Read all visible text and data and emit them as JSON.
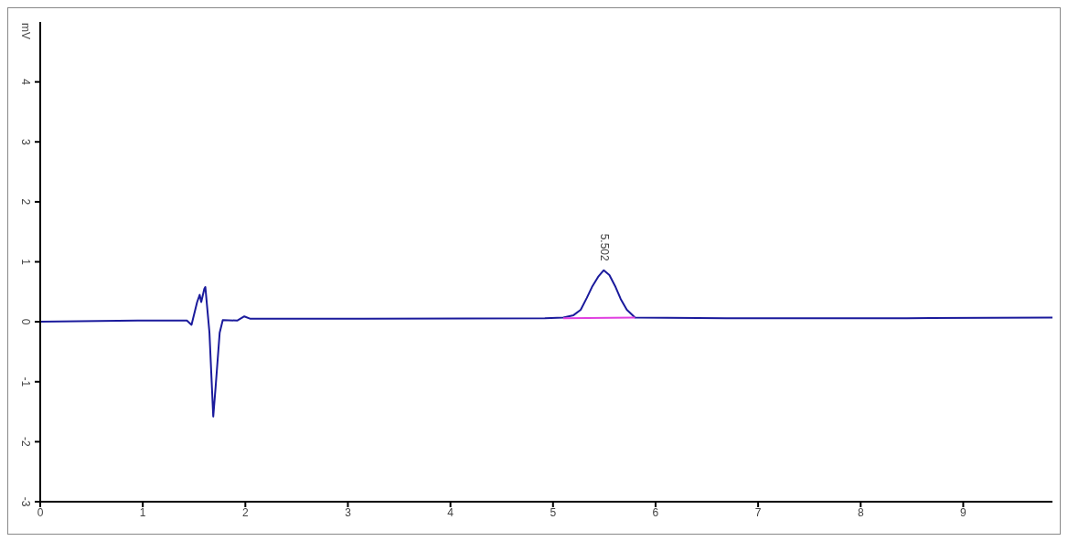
{
  "chart_data": {
    "type": "line",
    "ylabel": "mV",
    "xlim": [
      0,
      9.87
    ],
    "xticks": [
      0,
      1,
      2,
      3,
      4,
      5,
      6,
      7,
      8,
      9
    ],
    "ylim": [
      -3,
      5
    ],
    "yticks": [
      -3,
      -2,
      -1,
      0,
      1,
      2,
      3,
      4
    ],
    "marker": "none",
    "line_style": "solid",
    "series": [
      {
        "color": "#1a1a9c",
        "x": [
          0,
          0.95,
          1.43,
          1.475,
          1.53,
          1.555,
          1.57,
          1.6,
          1.61,
          1.65,
          1.687,
          1.71,
          1.75,
          1.78,
          1.92,
          1.99,
          2.05,
          3.15,
          4.92,
          5.1,
          5.2,
          5.27,
          5.33,
          5.38,
          5.44,
          5.495,
          5.55,
          5.61,
          5.66,
          5.72,
          5.8,
          6.69,
          8.45,
          9.87
        ],
        "values": [
          0,
          0.02,
          0.02,
          -0.05,
          0.33,
          0.45,
          0.33,
          0.55,
          0.58,
          -0.18,
          -1.58,
          -1.09,
          -0.18,
          0.03,
          0.02,
          0.09,
          0.05,
          0.05,
          0.06,
          0.07,
          0.11,
          0.2,
          0.4,
          0.58,
          0.75,
          0.86,
          0.78,
          0.58,
          0.38,
          0.2,
          0.07,
          0.06,
          0.06,
          0.07
        ]
      },
      {
        "color": "#e040e0",
        "x": [
          5.1,
          5.8
        ],
        "values": [
          0.06,
          0.07
        ]
      }
    ],
    "annotations": [
      {
        "text": "5.502",
        "x": 5.502,
        "y": 0.86
      }
    ]
  }
}
